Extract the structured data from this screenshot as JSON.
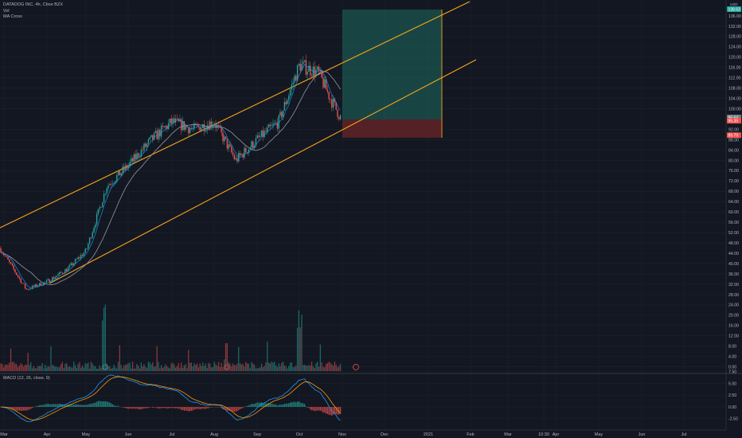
{
  "header": {
    "symbol": "DATADOG INC, 4h, Cboe BZX",
    "vol_label": "Vol",
    "ma_label": "MA Cross",
    "macd_label": "MACD (12, 26, close, 9)"
  },
  "price_axis": {
    "currency": "USD",
    "ticks": [
      "136.00",
      "132.00",
      "128.00",
      "124.00",
      "120.00",
      "116.00",
      "112.00",
      "108.00",
      "104.00",
      "100.00",
      "92.00",
      "88.00",
      "84.00",
      "80.00",
      "76.00",
      "72.00",
      "68.00",
      "64.00",
      "60.00",
      "56.00",
      "52.00",
      "48.00",
      "44.00",
      "40.00",
      "36.00",
      "32.00",
      "28.00",
      "24.00",
      "20.00",
      "16.00",
      "12.00",
      "8.00",
      "4.00",
      "0.00"
    ],
    "badges": [
      {
        "label": "96.64",
        "value": 96.64,
        "color": "#787b86"
      },
      {
        "label": "95.39",
        "value": 95.39,
        "color": "#ef5350"
      },
      {
        "label": "89.79",
        "value": 89.79,
        "color": "#ef5350"
      },
      {
        "label": "138.63",
        "value": 138.63,
        "color": "#26a69a"
      }
    ]
  },
  "macd_axis": {
    "ticks": [
      "7.50",
      "5.00",
      "2.50",
      "0.00",
      "-2.50"
    ]
  },
  "time_axis": {
    "labels": [
      "Mar",
      "Apr",
      "May",
      "Jun",
      "Jul",
      "Aug",
      "Sep",
      "Oct",
      "Nov",
      "Dec",
      "2021",
      "Feb",
      "Mar",
      "10:30",
      "Apr",
      "May",
      "Jun",
      "Jul"
    ]
  },
  "chart_data": {
    "type": "candlestick",
    "title": "DATADOG INC, 4h, Cboe BZX",
    "y_range": [
      0,
      140
    ],
    "price_path": [
      {
        "t": "Mar",
        "v": 46
      },
      {
        "t": "Mar 20",
        "v": 30
      },
      {
        "t": "Apr",
        "v": 33
      },
      {
        "t": "Apr 15",
        "v": 38
      },
      {
        "t": "May",
        "v": 45
      },
      {
        "t": "May 15",
        "v": 70
      },
      {
        "t": "Jun",
        "v": 78
      },
      {
        "t": "Jun 20",
        "v": 88
      },
      {
        "t": "Jul",
        "v": 95
      },
      {
        "t": "Jul 15",
        "v": 92
      },
      {
        "t": "Aug",
        "v": 95
      },
      {
        "t": "Aug 15",
        "v": 80
      },
      {
        "t": "Sep",
        "v": 88
      },
      {
        "t": "Sep 20",
        "v": 95
      },
      {
        "t": "Oct",
        "v": 117
      },
      {
        "t": "Oct 10",
        "v": 114
      },
      {
        "t": "Oct 20",
        "v": 104
      },
      {
        "t": "Oct 30",
        "v": 95.4
      }
    ],
    "position": {
      "entry": 95.39,
      "target": 138.63,
      "stop": 89.79
    },
    "colors": {
      "up": "#26a69a",
      "down": "#ef5350",
      "channel": "#f7a21b",
      "ma_fast": "#2196f3",
      "ma_slow": "#9598a1"
    }
  }
}
